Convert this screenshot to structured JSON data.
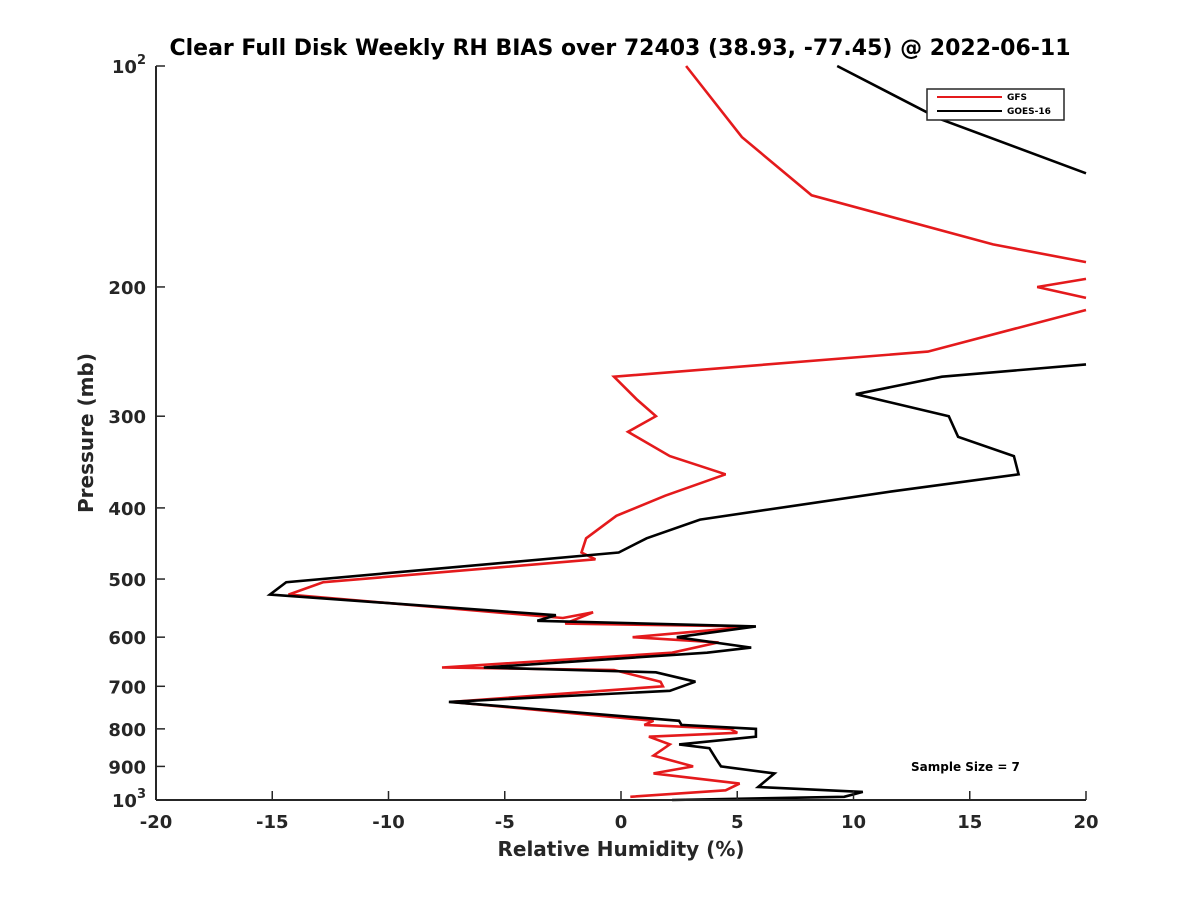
{
  "chart_data": {
    "type": "line",
    "title": "Clear Full Disk Weekly RH BIAS over 72403 (38.93, -77.45) @ 2022-06-11",
    "xlabel": "Relative Humidity (%)",
    "ylabel": "Pressure (mb)",
    "xlim": [
      -20,
      20
    ],
    "ylim": [
      100,
      1000
    ],
    "y_scale": "log",
    "y_reversed": true,
    "grid": false,
    "legend_position": "top-right",
    "x_ticks": [
      -20,
      -15,
      -10,
      -5,
      0,
      5,
      10,
      15,
      20
    ],
    "y_ticks": [
      {
        "value": 100,
        "base": "10",
        "exp": "2"
      },
      {
        "value": 200,
        "label": "200"
      },
      {
        "value": 300,
        "label": "300"
      },
      {
        "value": 400,
        "label": "400"
      },
      {
        "value": 500,
        "label": "500"
      },
      {
        "value": 600,
        "label": "600"
      },
      {
        "value": 700,
        "label": "700"
      },
      {
        "value": 800,
        "label": "800"
      },
      {
        "value": 900,
        "label": "900"
      },
      {
        "value": 1000,
        "base": "10",
        "exp": "3"
      }
    ],
    "annotation": "Sample Size = 7",
    "series": [
      {
        "name": "GFS",
        "color": "#e41a1c",
        "x": [
          2.8,
          5.2,
          8.2,
          16.0,
          20.0
        ],
        "y": [
          100,
          125,
          150,
          175,
          185
        ],
        "segments": [
          {
            "x": [
              2.8,
              5.2,
              8.2,
              16.0,
              20.0
            ],
            "y": [
              100,
              125,
              150,
              175,
              185
            ]
          },
          {
            "x": [
              20.0,
              17.9,
              20.0
            ],
            "y": [
              195,
              200,
              207
            ]
          },
          {
            "x": [
              20.0,
              13.2,
              -0.3,
              0.7,
              1.5,
              0.3,
              2.1,
              4.5,
              1.9,
              -0.2,
              -1.5,
              -1.7,
              -1.1,
              -12.8,
              -14.3,
              -2.5,
              -1.2,
              -2.4,
              5.7,
              0.5,
              4.2,
              2.2,
              -7.7,
              -0.3,
              1.7,
              1.8,
              -7.3,
              1.4,
              1.0,
              4.7,
              5.0,
              1.2,
              2.1,
              1.4,
              3.1,
              1.4,
              5.1,
              4.5,
              0.4
            ],
            "y": [
              215,
              245,
              265,
              285,
              300,
              315,
              340,
              360,
              385,
              410,
              440,
              460,
              470,
              505,
              525,
              565,
              555,
              575,
              580,
              600,
              610,
              630,
              660,
              665,
              690,
              700,
              735,
              780,
              790,
              800,
              810,
              820,
              840,
              870,
              900,
              920,
              950,
              970,
              990
            ]
          }
        ]
      },
      {
        "name": "GOES-16",
        "color": "#000000",
        "x": [
          9.3,
          13.7,
          20.0
        ],
        "y": [
          100,
          118,
          140
        ],
        "segments": [
          {
            "x": [
              9.3,
              13.7,
              20.0
            ],
            "y": [
              100,
              118,
              140
            ]
          },
          {
            "x": [
              20.0,
              13.8,
              10.1,
              14.1,
              14.5,
              16.9,
              17.1,
              11.6,
              3.4,
              1.1,
              -0.1,
              -14.4,
              -15.1,
              -2.8,
              -3.6,
              5.8,
              2.4,
              5.6,
              3.7,
              -5.9,
              1.5,
              3.2,
              2.1,
              -7.4,
              2.5,
              2.6,
              5.8,
              5.8,
              2.5,
              3.8,
              4.1,
              4.3,
              6.6,
              5.9,
              10.4,
              9.6,
              2.2
            ],
            "y": [
              255,
              265,
              280,
              300,
              320,
              340,
              360,
              380,
              415,
              440,
              460,
              505,
              525,
              560,
              570,
              580,
              600,
              620,
              630,
              660,
              670,
              690,
              710,
              735,
              780,
              790,
              800,
              820,
              840,
              850,
              880,
              900,
              920,
              960,
              975,
              990,
              1000
            ]
          }
        ]
      }
    ]
  }
}
